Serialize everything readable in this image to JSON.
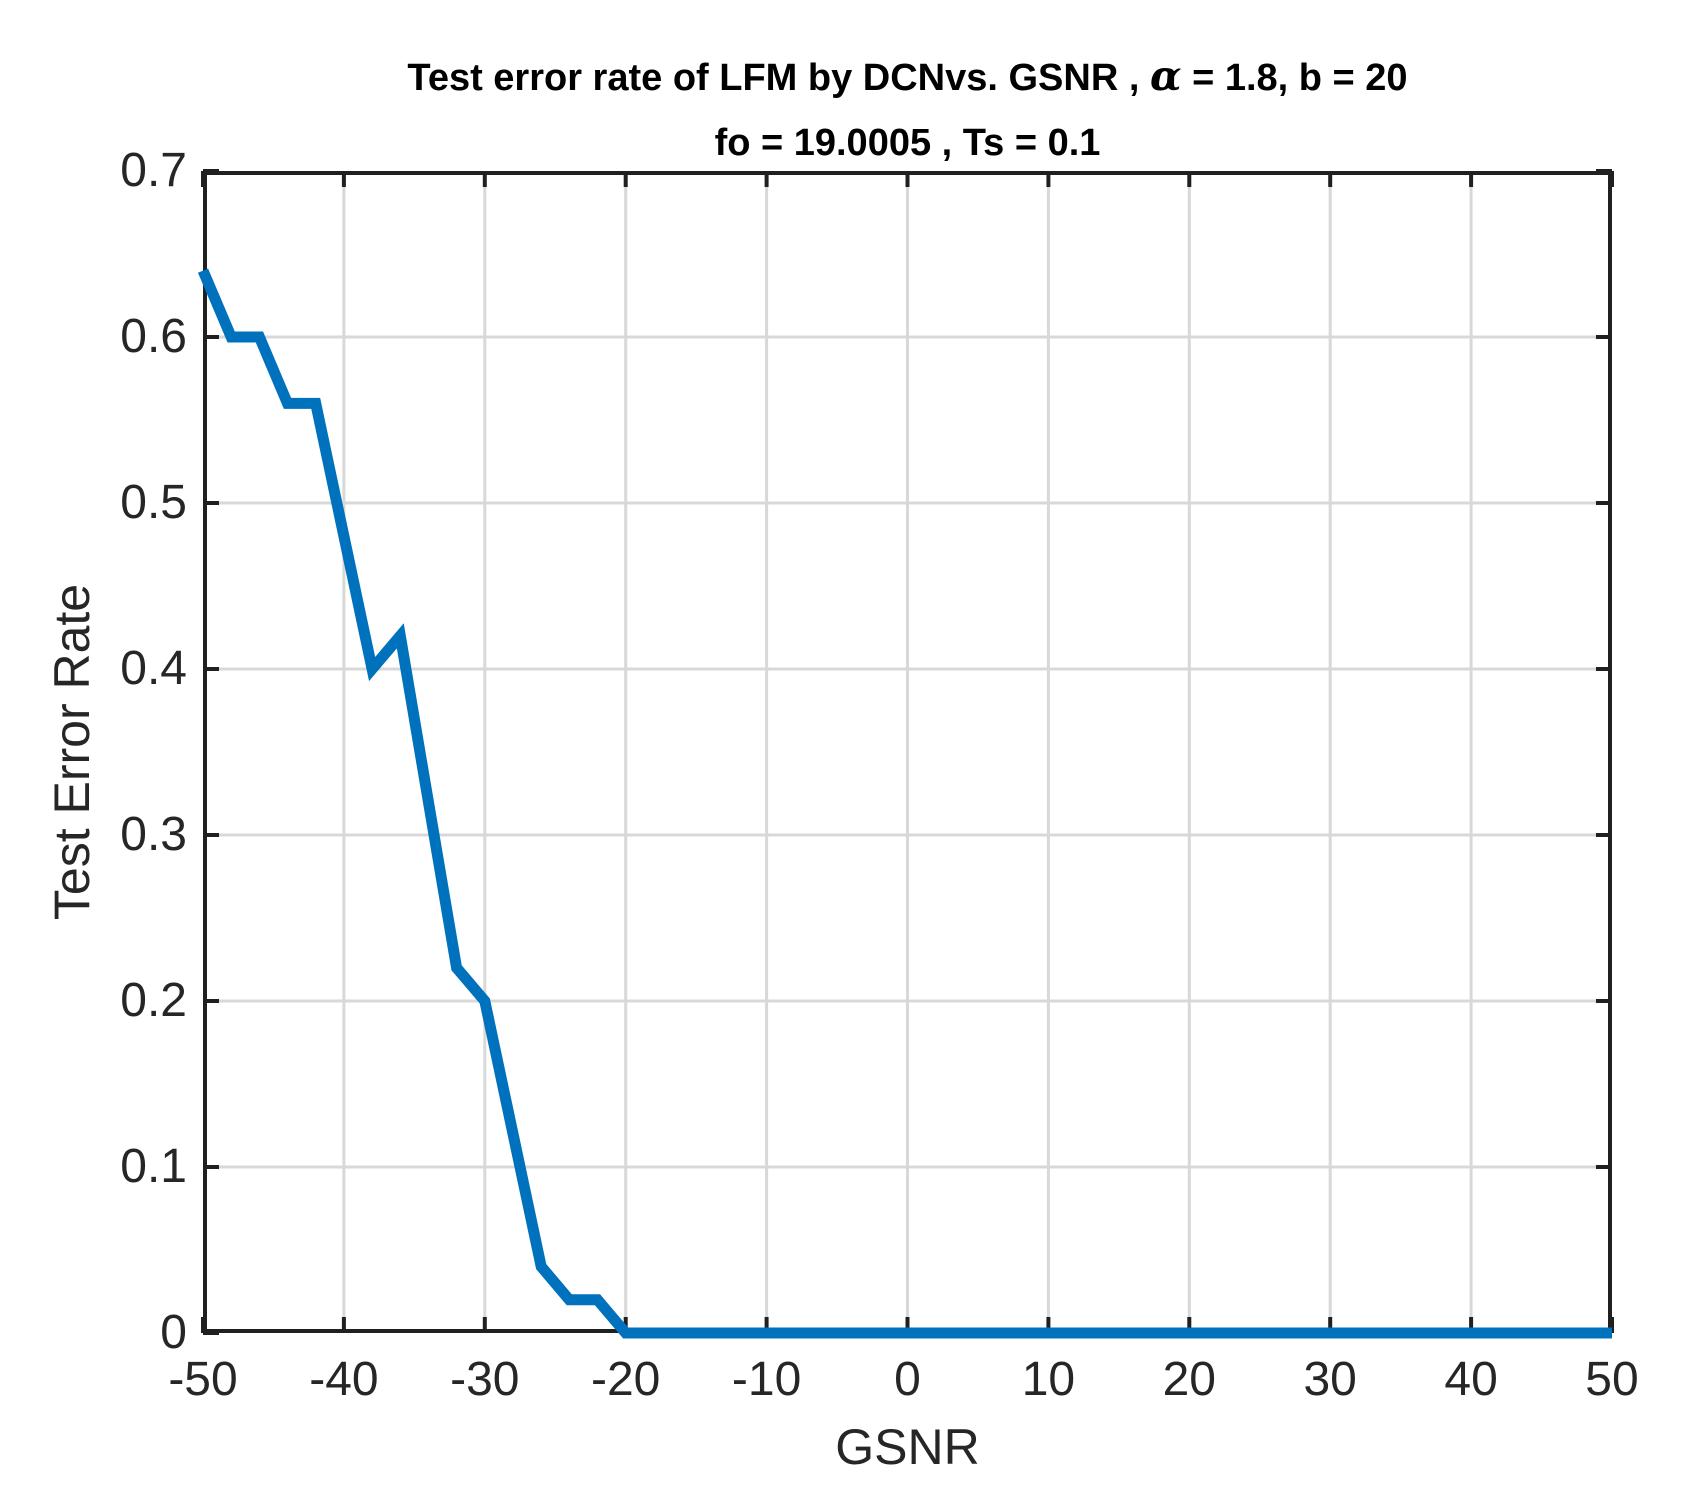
{
  "figure": {
    "title_line1_pre": "Test error rate of LFM by DCNvs. GSNR ,  ",
    "title_alpha": "α",
    "title_line1_post": " = 1.8, b = 20",
    "title_line2": "fo = 19.0005 , Ts = 0.1"
  },
  "chart_data": {
    "type": "line",
    "title": "Test error rate of LFM by DCNvs. GSNR , α = 1.8, b = 20",
    "subtitle": "fo = 19.0005 , Ts = 0.1",
    "xlabel": "GSNR",
    "ylabel": "Test Error Rate",
    "xlim": [
      -50,
      50
    ],
    "ylim": [
      0,
      0.7
    ],
    "x_ticks": [
      -50,
      -40,
      -30,
      -20,
      -10,
      0,
      10,
      20,
      30,
      40,
      50
    ],
    "y_ticks": [
      0,
      0.1,
      0.2,
      0.3,
      0.4,
      0.5,
      0.6,
      0.7
    ],
    "grid": true,
    "legend": "none",
    "colors": {
      "line": "#0072BD",
      "grid": "#d8d8d8",
      "axis": "#202020",
      "tick_label": "#262626"
    },
    "series": [
      {
        "name": "Test error rate of LFM by DCN",
        "x": [
          -50,
          -48,
          -46,
          -44,
          -42,
          -40,
          -38,
          -36,
          -34,
          -32,
          -30,
          -28,
          -26,
          -24,
          -22,
          -20,
          -18,
          -16,
          -14,
          -12,
          -10,
          -8,
          -6,
          -4,
          -2,
          0,
          2,
          4,
          6,
          8,
          10,
          12,
          14,
          16,
          18,
          20,
          22,
          24,
          26,
          28,
          30,
          32,
          34,
          36,
          38,
          40,
          42,
          44,
          46,
          48,
          50
        ],
        "y": [
          0.64,
          0.6,
          0.6,
          0.56,
          0.56,
          0.48,
          0.4,
          0.42,
          0.32,
          0.22,
          0.2,
          0.12,
          0.04,
          0.02,
          0.02,
          0,
          0,
          0,
          0,
          0,
          0,
          0,
          0,
          0,
          0,
          0,
          0,
          0,
          0,
          0,
          0,
          0,
          0,
          0,
          0,
          0,
          0,
          0,
          0,
          0,
          0,
          0,
          0,
          0,
          0,
          0,
          0,
          0,
          0,
          0,
          0
        ]
      }
    ]
  }
}
